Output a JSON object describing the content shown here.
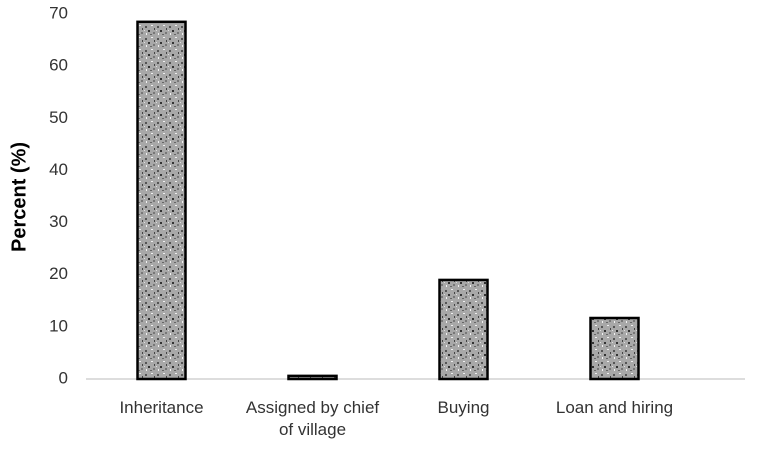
{
  "chart_data": {
    "type": "bar",
    "y_label": "Percent (%)",
    "categories": [
      "Inheritance",
      "Assigned by chief of village",
      "Buying",
      "Loan and hiring"
    ],
    "values": [
      68.5,
      0.6,
      19,
      11.7
    ],
    "color": "#a8a8a8",
    "ylim": [
      0,
      70
    ],
    "yticks": [
      0,
      10,
      20,
      30,
      40,
      50,
      60,
      70
    ],
    "grid": false
  }
}
